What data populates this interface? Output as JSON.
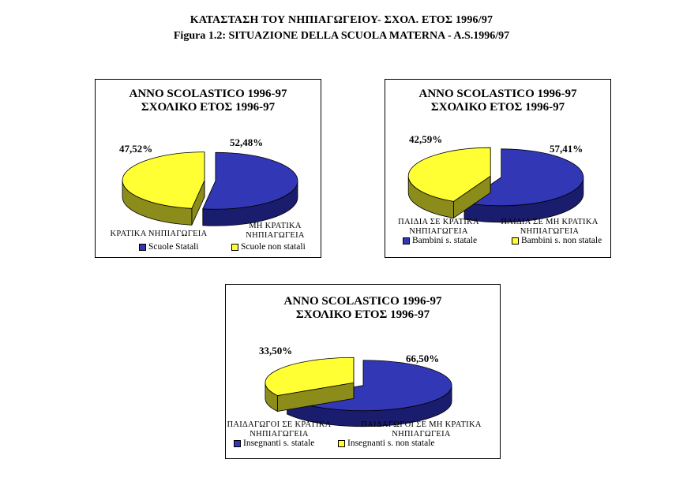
{
  "title_greek": "ΚΑΤΑΣΤΑΣΗ ΤΟΥ ΝΗΠΙΑΓΩΓΕΙΟΥ- ΣΧΟΛ. ΕΤΟΣ 1996/97",
  "title_italian": "Figura 1.2: SITUAZIONE DELLA SCUOLA MATERNA - A.S.1996/97",
  "colors": {
    "blue": "#3237b6",
    "blue_side": "#1a1d6e",
    "yellow": "#ffff33",
    "yellow_side": "#8c8c1a"
  },
  "chart_data": [
    {
      "type": "pie",
      "title_line1": "ANNO SCOLASTICO 1996-97",
      "title_line2": "ΣΧΟΛΙΚΟ ΕΤΟΣ 1996-97",
      "slices": [
        {
          "label": "Scuole Statali",
          "value": 52.48,
          "value_label": "52,48%",
          "caption": "ΚΡΑΤΙΚΑ ΝΗΠΙΑΓΩΓΕΙΑ",
          "color": "blue"
        },
        {
          "label": "Scuole non statali",
          "value": 47.52,
          "value_label": "47,52%",
          "caption": "ΜΗ ΚΡΑΤΙΚΑ ΝΗΠΙΑΓΩΓΕΙΑ",
          "color": "yellow"
        }
      ]
    },
    {
      "type": "pie",
      "title_line1": "ANNO SCOLASTICO 1996-97",
      "title_line2": "ΣΧΟΛΙΚΟ ΕΤΟΣ 1996-97",
      "slices": [
        {
          "label": "Bambini s. statale",
          "value": 57.41,
          "value_label": "57,41%",
          "caption": "ΠΑΙΔΙΑ ΣΕ ΚΡΑΤΙΚΑ ΝΗΠΙΑΓΩΓΕΙΑ",
          "color": "blue"
        },
        {
          "label": "Bambini s. non statale",
          "value": 42.59,
          "value_label": "42,59%",
          "caption": "ΠΑΙΔΙΑ ΣΕ ΜΗ ΚΡΑΤΙΚΑ ΝΗΠΙΑΓΩΓΕΙΑ",
          "color": "yellow"
        }
      ]
    },
    {
      "type": "pie",
      "title_line1": "ANNO SCOLASTICO 1996-97",
      "title_line2": "ΣΧΟΛΙΚΟ ΕΤΟΣ 1996-97",
      "slices": [
        {
          "label": "Insegnanti s. statale",
          "value": 66.5,
          "value_label": "66,50%",
          "caption": "ΠΑΙΔΑΓΩΓΟΙ ΣΕ ΚΡΑΤΙΚΑ ΝΗΠΙΑΓΩΓΕΙΑ",
          "color": "blue"
        },
        {
          "label": "Insegnanti s. non statale",
          "value": 33.5,
          "value_label": "33,50%",
          "caption": "ΠΑΙΔΑΓΩΓΟΙ ΣΕ ΜΗ ΚΡΑΤΙΚΑ ΝΗΠΙΑΓΩΓΕΙΑ",
          "color": "yellow"
        }
      ]
    }
  ]
}
